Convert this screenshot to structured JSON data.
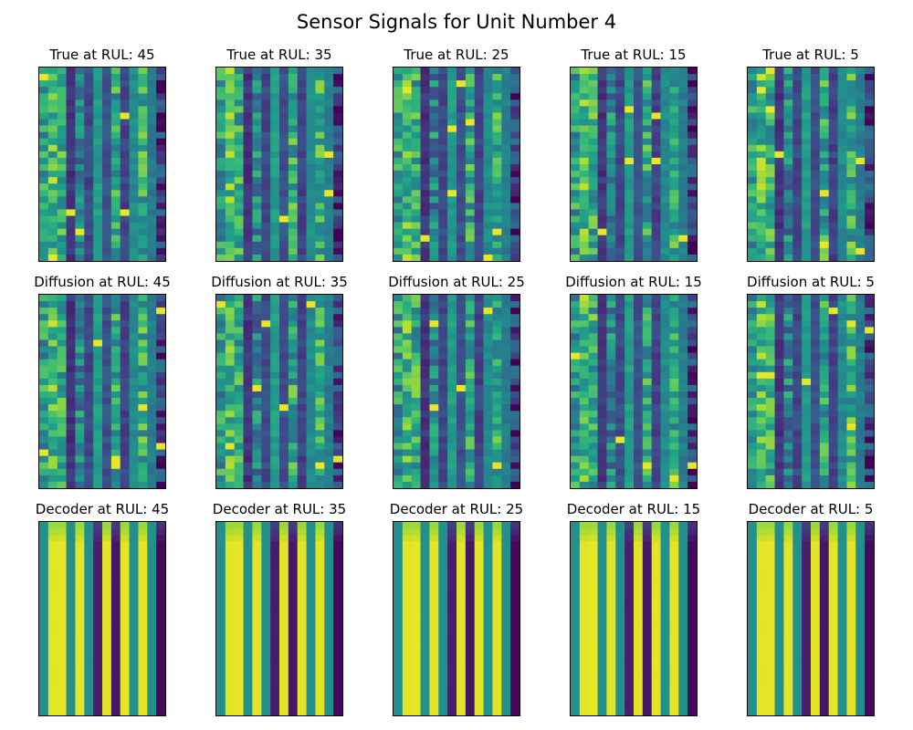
{
  "chart_data": {
    "type": "heatmap",
    "title": "Sensor Signals for Unit Number 4",
    "colormap": "viridis",
    "xticks": "none",
    "yticks": "none",
    "grid": false,
    "legend": "none",
    "rows": [
      {
        "name": "True",
        "panels": [
          {
            "title": "True at RUL: 45"
          },
          {
            "title": "True at RUL: 35"
          },
          {
            "title": "True at RUL: 25"
          },
          {
            "title": "True at RUL: 15"
          },
          {
            "title": "True at RUL: 5"
          }
        ]
      },
      {
        "name": "Diffusion",
        "panels": [
          {
            "title": "Diffusion at RUL: 45"
          },
          {
            "title": "Diffusion at RUL: 35"
          },
          {
            "title": "Diffusion at RUL: 25"
          },
          {
            "title": "Diffusion at RUL: 15"
          },
          {
            "title": "Diffusion at RUL: 5"
          }
        ]
      },
      {
        "name": "Decoder",
        "panels": [
          {
            "title": "Decoder at RUL: 45"
          },
          {
            "title": "Decoder at RUL: 35"
          },
          {
            "title": "Decoder at RUL: 25"
          },
          {
            "title": "Decoder at RUL: 15"
          },
          {
            "title": "Decoder at RUL: 5"
          }
        ]
      }
    ],
    "sensor_columns": 14,
    "column_levels_true": [
      0.55,
      0.7,
      0.62,
      0.15,
      0.45,
      0.22,
      0.55,
      0.25,
      0.6,
      0.2,
      0.48,
      0.62,
      0.42,
      0.18
    ],
    "column_levels_decoder": [
      0.5,
      0.96,
      0.97,
      0.5,
      0.96,
      0.5,
      0.08,
      0.96,
      0.06,
      0.96,
      0.5,
      0.96,
      0.5,
      0.02
    ]
  }
}
